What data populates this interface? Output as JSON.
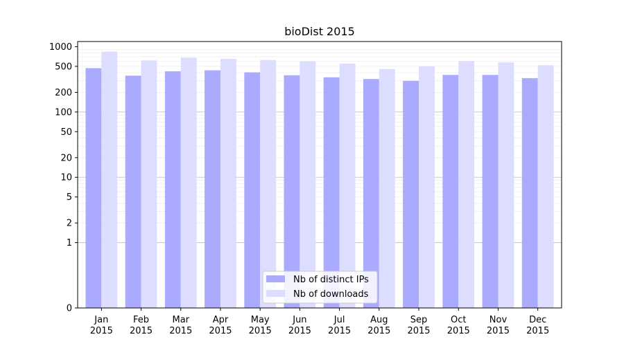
{
  "chart_data": {
    "type": "bar",
    "title": "bioDist 2015",
    "xlabel": "",
    "ylabel": "",
    "y_scale": "symlog",
    "ylim": [
      0,
      1200
    ],
    "grid": "horizontal, major and minor",
    "legend_position": "lower center",
    "categories": [
      {
        "month": "Jan",
        "year": "2015"
      },
      {
        "month": "Feb",
        "year": "2015"
      },
      {
        "month": "Mar",
        "year": "2015"
      },
      {
        "month": "Apr",
        "year": "2015"
      },
      {
        "month": "May",
        "year": "2015"
      },
      {
        "month": "Jun",
        "year": "2015"
      },
      {
        "month": "Jul",
        "year": "2015"
      },
      {
        "month": "Aug",
        "year": "2015"
      },
      {
        "month": "Sep",
        "year": "2015"
      },
      {
        "month": "Oct",
        "year": "2015"
      },
      {
        "month": "Nov",
        "year": "2015"
      },
      {
        "month": "Dec",
        "year": "2015"
      }
    ],
    "y_ticks": [
      0,
      1,
      2,
      5,
      10,
      20,
      50,
      100,
      200,
      500,
      1000
    ],
    "series": [
      {
        "name": "Nb of distinct IPs",
        "color": "#aaaaff",
        "values": [
          470,
          360,
          420,
          435,
          405,
          365,
          340,
          320,
          300,
          370,
          370,
          330
        ]
      },
      {
        "name": "Nb of downloads",
        "color": "#ddddff",
        "values": [
          840,
          615,
          680,
          650,
          625,
          595,
          550,
          455,
          505,
          600,
          575,
          520
        ]
      }
    ]
  }
}
